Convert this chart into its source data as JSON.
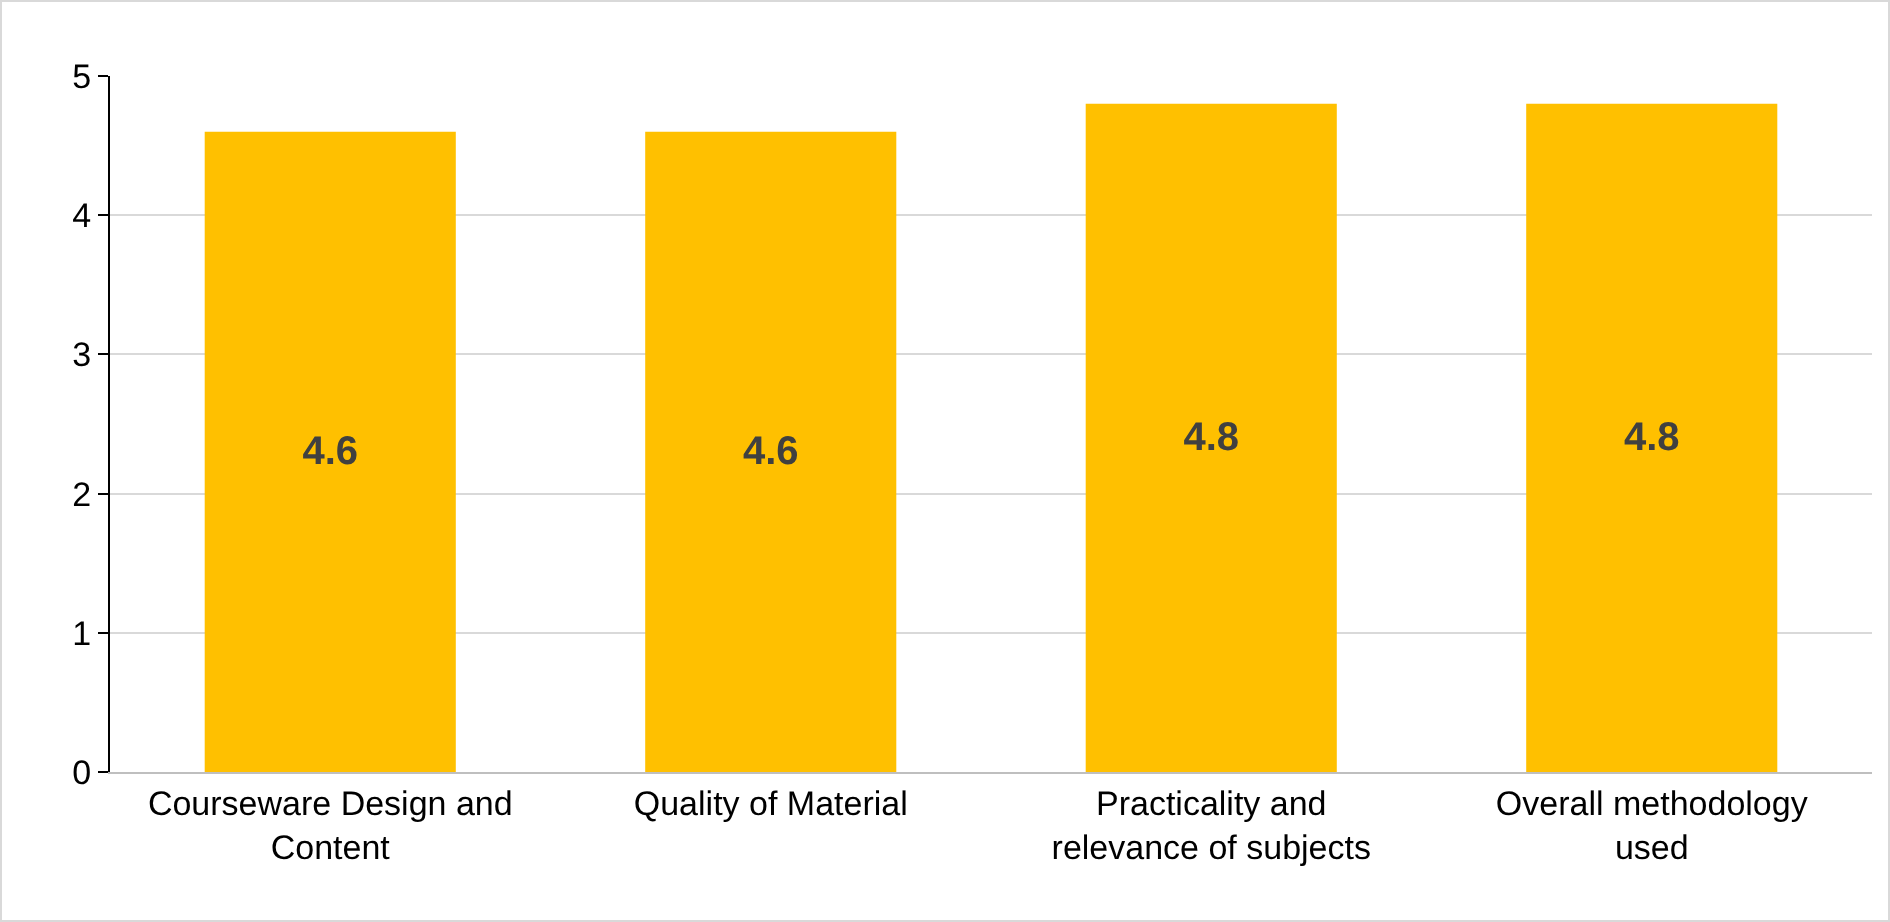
{
  "chart_data": {
    "type": "bar",
    "categories": [
      "Courseware Design and Content",
      "Quality of Material",
      "Practicality and relevance of subjects",
      "Overall methodology used"
    ],
    "values": [
      4.6,
      4.6,
      4.8,
      4.8
    ],
    "color": "#ffc000",
    "ylim": [
      0,
      5
    ],
    "yticks": [
      0,
      1,
      2,
      3,
      4,
      5
    ],
    "grid": "y",
    "data_labels": true
  }
}
